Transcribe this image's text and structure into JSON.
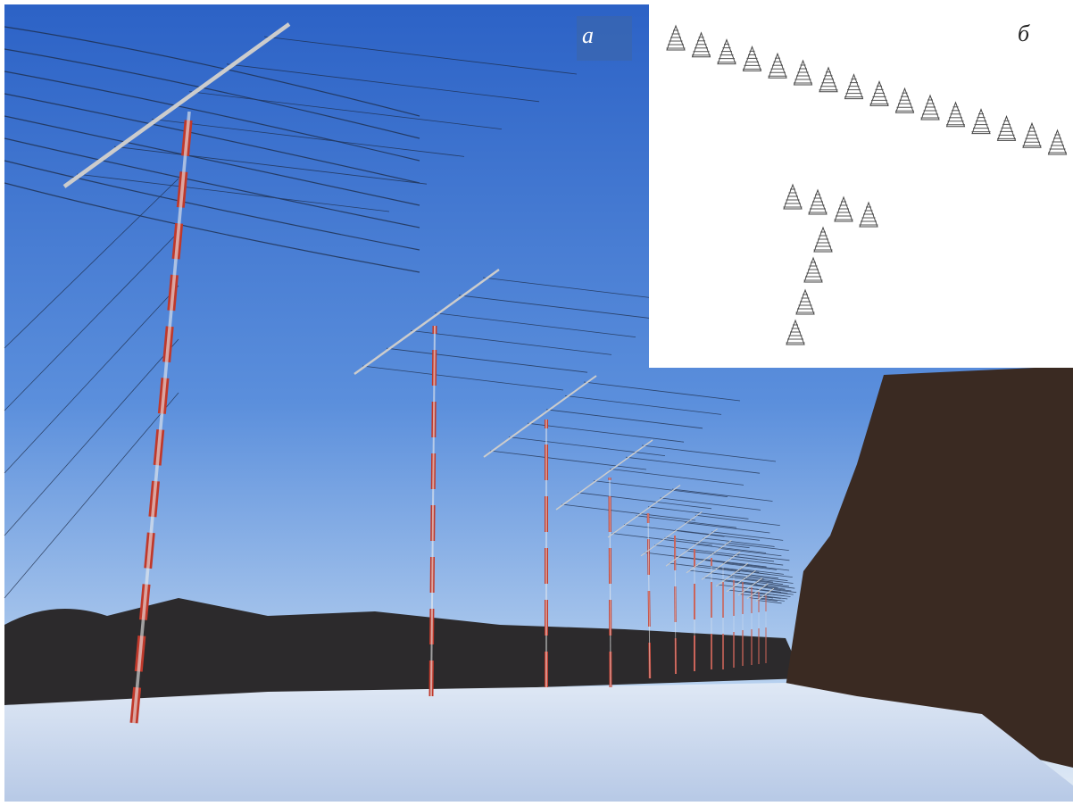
{
  "labels": {
    "a": "а",
    "b": "б"
  }
}
